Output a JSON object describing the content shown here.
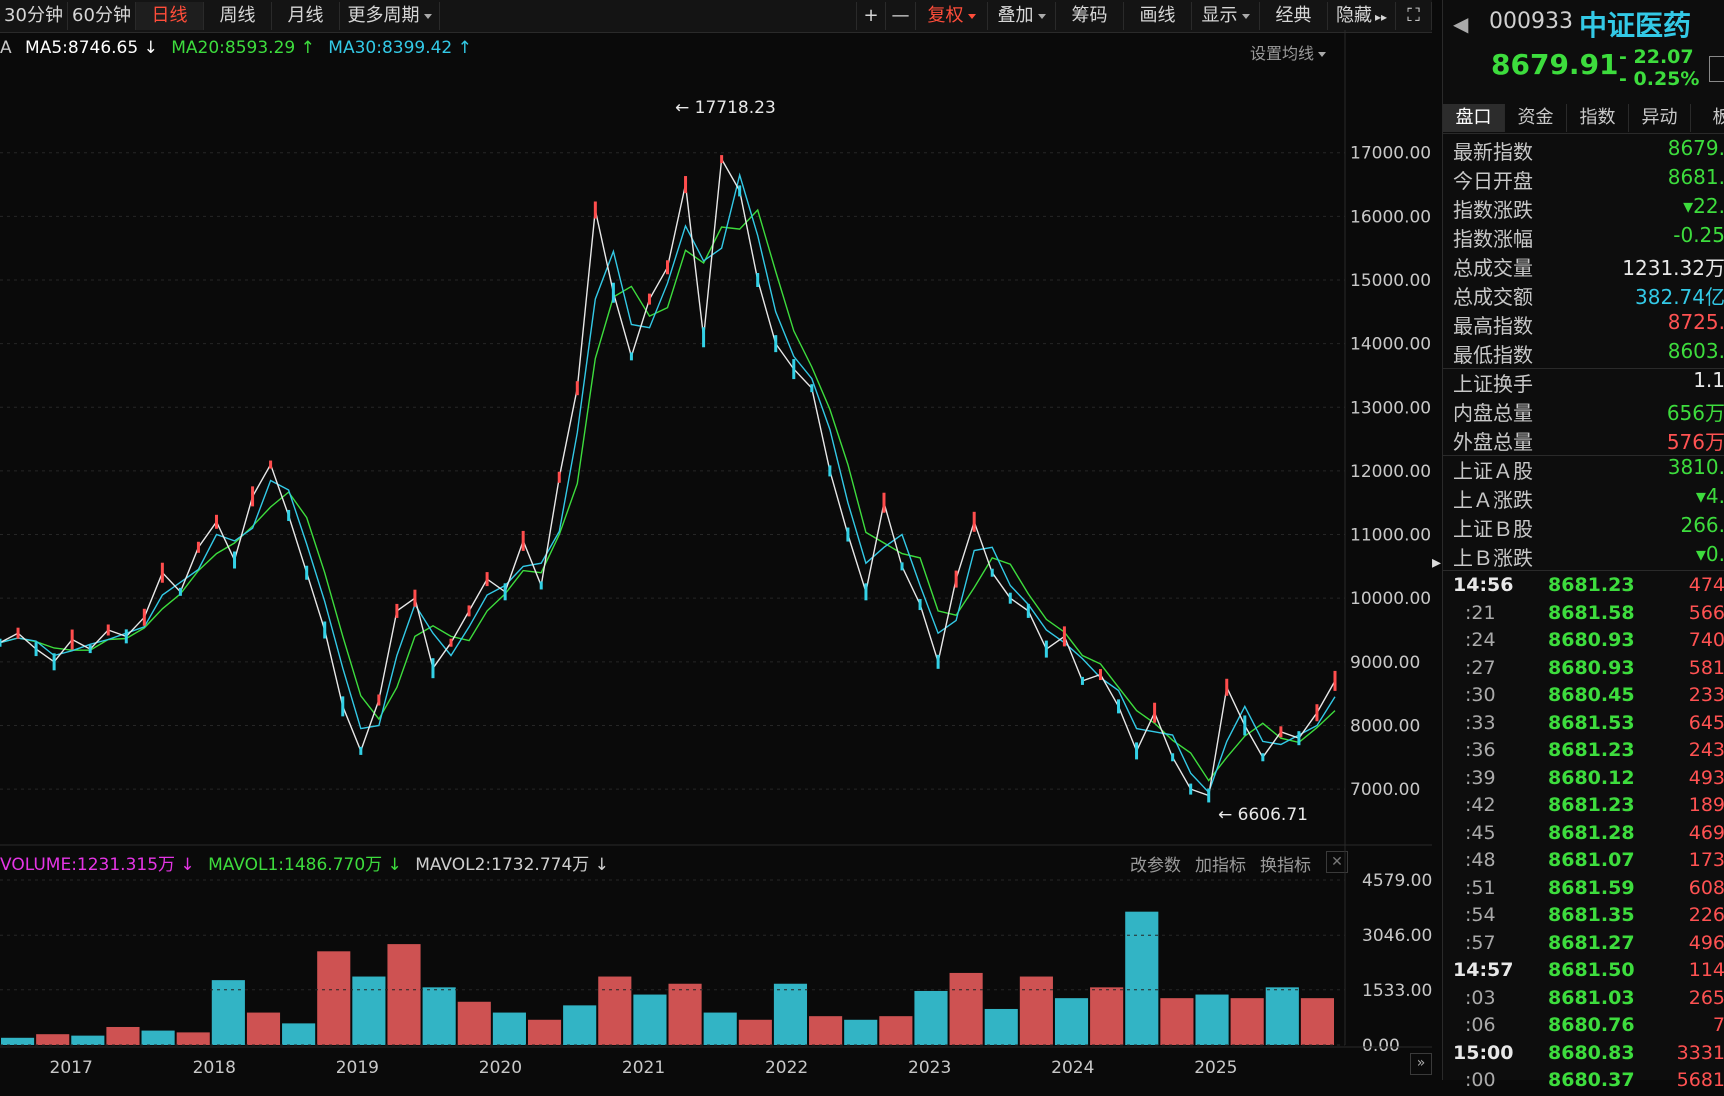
{
  "toolbar": {
    "tabs": [
      {
        "label": "30分钟"
      },
      {
        "label": "60分钟"
      },
      {
        "label": "日线"
      },
      {
        "label": "周线"
      },
      {
        "label": "月线"
      },
      {
        "label": "更多周期"
      }
    ],
    "tools": [
      {
        "label": "+"
      },
      {
        "label": "—"
      },
      {
        "label": "复权"
      },
      {
        "label": "叠加"
      },
      {
        "label": "筹码"
      },
      {
        "label": "画线"
      },
      {
        "label": "显示"
      },
      {
        "label": "经典"
      },
      {
        "label": "隐藏"
      }
    ]
  },
  "indicators": {
    "ma_prefix": "A",
    "ma5": "MA5:8746.65",
    "ma20": "MA20:8593.29",
    "ma30": "MA30:8399.42",
    "set_ma": "设置均线",
    "volume": "VOLUME:1231.315万",
    "mavol1": "MAVOL1:1486.770万",
    "mavol2": "MAVOL2:1732.774万",
    "edit_params": "改参数",
    "add_indicator": "加指标",
    "switch_indicator": "换指标"
  },
  "chart_data": [
    {
      "type": "line",
      "series": [
        {
          "values": [
            9300,
            9450,
            9200,
            9000,
            9350,
            9200,
            9500,
            9400,
            9700,
            10400,
            10100,
            10800,
            11200,
            10600,
            11600,
            12100,
            11300,
            10400,
            9500,
            8300,
            7600,
            8400,
            9800,
            10000,
            8900,
            9300,
            9800,
            10300,
            10100,
            10900,
            10200,
            11900,
            13300,
            16100,
            14800,
            13800,
            14700,
            15200,
            16500,
            14100,
            16900,
            16400,
            15000,
            14000,
            13600,
            13300,
            12000,
            11000,
            10100,
            11500,
            10500,
            9900,
            9000,
            10300,
            11200,
            10400,
            10000,
            9800,
            9200,
            9400,
            8700,
            8800,
            8300,
            7600,
            8200,
            7500,
            7000,
            6900,
            8600,
            8000,
            7500,
            7900,
            7800,
            8200,
            8700
          ]
        }
      ],
      "annotations": [
        "17718.23",
        "6606.71"
      ],
      "yticks": [
        "17000.00",
        "16000.00",
        "15000.00",
        "14000.00",
        "13000.00",
        "12000.00",
        "11000.00",
        "10000.00",
        "9000.00",
        "8000.00",
        "7000.00"
      ],
      "ylim": [
        6200,
        18300
      ],
      "xlabels": [
        "2017",
        "2018",
        "2019",
        "2020",
        "2021",
        "2022",
        "2023",
        "2024",
        "2025"
      ],
      "xrange": [
        2016.5,
        2025.9
      ],
      "grid": true
    },
    {
      "type": "bar",
      "values": [
        200,
        300,
        260,
        500,
        400,
        350,
        1800,
        900,
        600,
        2600,
        1900,
        2800,
        1600,
        1200,
        900,
        700,
        1100,
        1900,
        1400,
        1700,
        900,
        700,
        1700,
        800,
        700,
        800,
        1500,
        2000,
        1000,
        1900,
        1300,
        1600,
        3700,
        1300,
        1400,
        1300,
        1600,
        1300
      ],
      "yticks": [
        "4579.00",
        "3046.00",
        "1533.00",
        "0.00"
      ],
      "ylim": [
        0,
        4579
      ]
    }
  ],
  "quote": {
    "code": "000933",
    "name": "中证医药",
    "price": "8679.91",
    "change": "- 22.07",
    "change_pct": "- 0.25%",
    "tabs": [
      "盘口",
      "资金",
      "指数",
      "异动",
      "板"
    ],
    "fields": [
      {
        "label": "最新指数",
        "value": "8679.",
        "color": "#3ddc3d"
      },
      {
        "label": "今日开盘",
        "value": "8681.",
        "color": "#3ddc3d"
      },
      {
        "label": "指数涨跌",
        "value": "▾22.",
        "color": "#3ddc3d"
      },
      {
        "label": "指数涨幅",
        "value": "-0.25",
        "color": "#3ddc3d"
      },
      {
        "label": "总成交量",
        "value": "1231.32万",
        "color": "#e8e8e8"
      },
      {
        "label": "总成交额",
        "value": "382.74亿",
        "color": "#33c9e6"
      },
      {
        "label": "最高指数",
        "value": "8725.",
        "color": "#ff5252"
      },
      {
        "label": "最低指数",
        "value": "8603.",
        "color": "#3ddc3d"
      },
      {
        "label": "上证换手",
        "value": "1.1",
        "color": "#e8e8e8"
      },
      {
        "label": "内盘总量",
        "value": "656万",
        "color": "#3ddc3d"
      },
      {
        "label": "外盘总量",
        "value": "576万",
        "color": "#ff5252"
      },
      {
        "label": "上证Ａ股",
        "value": "3810.",
        "color": "#3ddc3d"
      },
      {
        "label": "上Ａ涨跌",
        "value": "▾4.",
        "color": "#3ddc3d"
      },
      {
        "label": "上证Ｂ股",
        "value": "266.",
        "color": "#3ddc3d"
      },
      {
        "label": "上Ｂ涨跌",
        "value": "▾0.",
        "color": "#3ddc3d"
      }
    ],
    "ticks": [
      {
        "time": "14:56",
        "price": "8681.23",
        "vol": "474",
        "main": true
      },
      {
        "time": ":21",
        "price": "8681.58",
        "vol": "566"
      },
      {
        "time": ":24",
        "price": "8680.93",
        "vol": "740"
      },
      {
        "time": ":27",
        "price": "8680.93",
        "vol": "581"
      },
      {
        "time": ":30",
        "price": "8680.45",
        "vol": "233"
      },
      {
        "time": ":33",
        "price": "8681.53",
        "vol": "645"
      },
      {
        "time": ":36",
        "price": "8681.23",
        "vol": "243"
      },
      {
        "time": ":39",
        "price": "8680.12",
        "vol": "493"
      },
      {
        "time": ":42",
        "price": "8681.23",
        "vol": "189"
      },
      {
        "time": ":45",
        "price": "8681.28",
        "vol": "469"
      },
      {
        "time": ":48",
        "price": "8681.07",
        "vol": "173"
      },
      {
        "time": ":51",
        "price": "8681.59",
        "vol": "608"
      },
      {
        "time": ":54",
        "price": "8681.35",
        "vol": "226"
      },
      {
        "time": ":57",
        "price": "8681.27",
        "vol": "496"
      },
      {
        "time": "14:57",
        "price": "8681.50",
        "vol": "114",
        "main": true
      },
      {
        "time": ":03",
        "price": "8681.03",
        "vol": "265"
      },
      {
        "time": ":06",
        "price": "8680.76",
        "vol": "7"
      },
      {
        "time": "15:00",
        "price": "8680.83",
        "vol": "3331",
        "main": true
      },
      {
        "time": ":00",
        "price": "8680.37",
        "vol": "5681"
      }
    ]
  }
}
